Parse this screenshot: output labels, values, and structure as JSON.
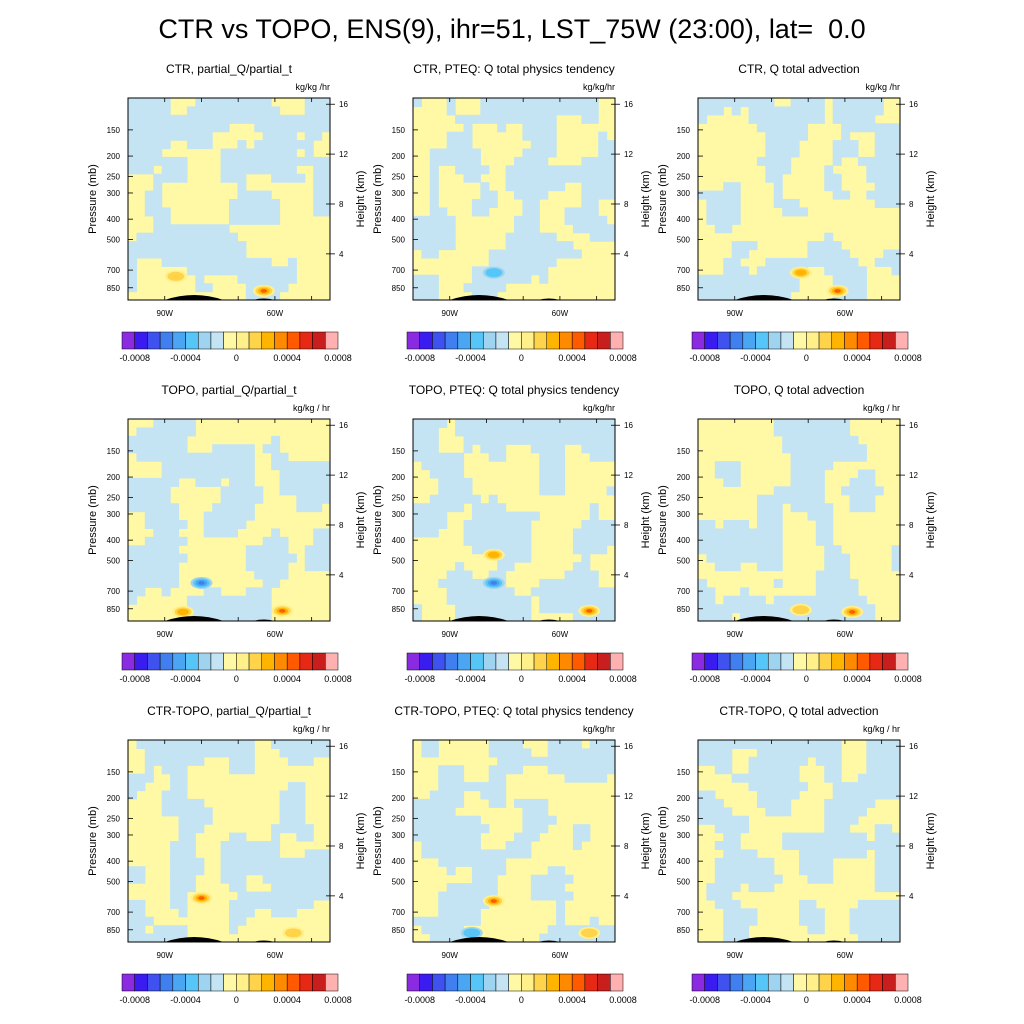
{
  "figure_title": "CTR vs TOPO, ENS(9), ihr=51, LST_75W (23:00), lat=  0.0",
  "colorbar": {
    "colors": [
      "#8a2be2",
      "#3b1cf0",
      "#3f52ef",
      "#3f7fef",
      "#4aa6f2",
      "#55c6f7",
      "#9fd4f0",
      "#c4e4f4",
      "#fff8a4",
      "#fff08a",
      "#ffd44a",
      "#ffb400",
      "#ff8a00",
      "#ff5a00",
      "#e62814",
      "#c81e1e",
      "#ffb0b0"
    ],
    "tick_labels": [
      "-0.0008",
      "-0.0004",
      "0",
      "0.0004",
      "0.0008"
    ]
  },
  "chart_data": [
    {
      "type": "heatmap",
      "title": "CTR, partial_Q/partial_t",
      "units": "kg/kg /hr",
      "ylabel": "Pressure (mb)",
      "ylabel_right": "Height (km)",
      "xticks": [
        "90W",
        "60W"
      ],
      "yticks_left": [
        "150",
        "200",
        "250",
        "300",
        "400",
        "500",
        "700",
        "850"
      ],
      "yticks_right": [
        "16",
        "12",
        "8",
        "4"
      ],
      "seed": 11,
      "blue_frac": 0.55,
      "hotspots": [
        {
          "lon": -87,
          "pres": 750,
          "val": 0.0003
        },
        {
          "lon": -63,
          "pres": 880,
          "val": 0.0005
        }
      ]
    },
    {
      "type": "heatmap",
      "title": "CTR, PTEQ: Q total physics tendency",
      "units": "kg/kg/hr",
      "ylabel": "Pressure (mb)",
      "ylabel_right": "Height (km)",
      "xticks": [
        "90W",
        "60W"
      ],
      "yticks_left": [
        "150",
        "200",
        "250",
        "300",
        "400",
        "500",
        "700",
        "850"
      ],
      "yticks_right": [
        "16",
        "12",
        "8",
        "4"
      ],
      "seed": 23,
      "blue_frac": 0.48,
      "hotspots": [
        {
          "lon": -78,
          "pres": 720,
          "val": -0.0003
        }
      ]
    },
    {
      "type": "heatmap",
      "title": "CTR, Q total advection",
      "units": "kg/kg /hr",
      "ylabel": "Pressure (mb)",
      "ylabel_right": "Height (km)",
      "xticks": [
        "90W",
        "60W"
      ],
      "yticks_left": [
        "150",
        "200",
        "250",
        "300",
        "400",
        "500",
        "700",
        "850"
      ],
      "yticks_right": [
        "16",
        "12",
        "8",
        "4"
      ],
      "seed": 37,
      "blue_frac": 0.45,
      "hotspots": [
        {
          "lon": -72,
          "pres": 720,
          "val": 0.0004
        },
        {
          "lon": -62,
          "pres": 880,
          "val": 0.0005
        }
      ]
    },
    {
      "type": "heatmap",
      "title": "TOPO, partial_Q/partial_t",
      "units": "kg/kg / hr",
      "ylabel": "Pressure (mb)",
      "ylabel_right": "Height (km)",
      "xticks": [
        "90W",
        "60W"
      ],
      "yticks_left": [
        "150",
        "200",
        "250",
        "300",
        "400",
        "500",
        "700",
        "850"
      ],
      "yticks_right": [
        "16",
        "12",
        "8",
        "4"
      ],
      "seed": 41,
      "blue_frac": 0.5,
      "hotspots": [
        {
          "lon": -80,
          "pres": 640,
          "val": -0.0006
        },
        {
          "lon": -85,
          "pres": 880,
          "val": 0.0004
        },
        {
          "lon": -58,
          "pres": 870,
          "val": 0.0005
        }
      ]
    },
    {
      "type": "heatmap",
      "title": "TOPO, PTEQ: Q total physics tendency",
      "units": "kg/kg/hr",
      "ylabel": "Pressure (mb)",
      "ylabel_right": "Height (km)",
      "xticks": [
        "90W",
        "60W"
      ],
      "yticks_left": [
        "150",
        "200",
        "250",
        "300",
        "400",
        "500",
        "700",
        "850"
      ],
      "yticks_right": [
        "16",
        "12",
        "8",
        "4"
      ],
      "seed": 53,
      "blue_frac": 0.55,
      "hotspots": [
        {
          "lon": -78,
          "pres": 640,
          "val": -0.0007
        },
        {
          "lon": -78,
          "pres": 470,
          "val": 0.0004
        },
        {
          "lon": -52,
          "pres": 870,
          "val": 0.0005
        }
      ]
    },
    {
      "type": "heatmap",
      "title": "TOPO, Q total advection",
      "units": "kg/kg / hr",
      "ylabel": "Pressure (mb)",
      "ylabel_right": "Height (km)",
      "xticks": [
        "90W",
        "60W"
      ],
      "yticks_left": [
        "150",
        "200",
        "250",
        "300",
        "400",
        "500",
        "700",
        "850"
      ],
      "yticks_right": [
        "16",
        "12",
        "8",
        "4"
      ],
      "seed": 59,
      "blue_frac": 0.45,
      "hotspots": [
        {
          "lon": -72,
          "pres": 860,
          "val": 0.0003
        },
        {
          "lon": -58,
          "pres": 880,
          "val": 0.0005
        }
      ]
    },
    {
      "type": "heatmap",
      "title": "CTR-TOPO, partial_Q/partial_t",
      "units": "kg/kg / hr",
      "ylabel": "Pressure (mb)",
      "ylabel_right": "Height (km)",
      "xticks": [
        "90W",
        "60W"
      ],
      "yticks_left": [
        "150",
        "200",
        "250",
        "300",
        "400",
        "500",
        "700",
        "850"
      ],
      "yticks_right": [
        "16",
        "12",
        "8",
        "4"
      ],
      "seed": 67,
      "blue_frac": 0.45,
      "hotspots": [
        {
          "lon": -80,
          "pres": 600,
          "val": 0.0007
        },
        {
          "lon": -55,
          "pres": 880,
          "val": 0.0003
        }
      ]
    },
    {
      "type": "heatmap",
      "title": "CTR-TOPO, PTEQ: Q total physics tendency",
      "units": "kg/kg/hr",
      "ylabel": "Pressure (mb)",
      "ylabel_right": "Height (km)",
      "xticks": [
        "90W",
        "60W"
      ],
      "yticks_left": [
        "150",
        "200",
        "250",
        "300",
        "400",
        "500",
        "700",
        "850"
      ],
      "yticks_right": [
        "16",
        "12",
        "8",
        "4"
      ],
      "seed": 71,
      "blue_frac": 0.45,
      "hotspots": [
        {
          "lon": -78,
          "pres": 620,
          "val": 0.0007
        },
        {
          "lon": -84,
          "pres": 880,
          "val": -0.0003
        },
        {
          "lon": -52,
          "pres": 880,
          "val": 0.0003
        }
      ]
    },
    {
      "type": "heatmap",
      "title": "CTR-TOPO, Q total advection",
      "units": "kg/kg / hr",
      "ylabel": "Pressure (mb)",
      "ylabel_right": "Height (km)",
      "xticks": [
        "90W",
        "60W"
      ],
      "yticks_left": [
        "150",
        "200",
        "250",
        "300",
        "400",
        "500",
        "700",
        "850"
      ],
      "yticks_right": [
        "16",
        "12",
        "8",
        "4"
      ],
      "seed": 79,
      "blue_frac": 0.55,
      "hotspots": []
    }
  ]
}
